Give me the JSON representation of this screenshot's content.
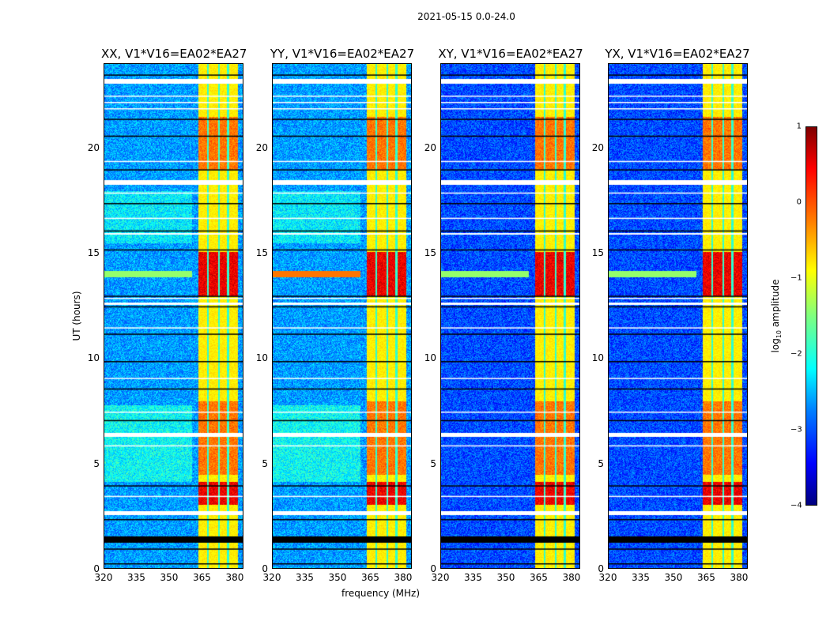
{
  "chart_data": {
    "type": "heatmap",
    "suptitle": "2021-05-15 0.0-24.0",
    "xlabel": "frequency (MHz)",
    "ylabel": "UT (hours)",
    "xlim": [
      320,
      384
    ],
    "ylim": [
      0,
      24
    ],
    "xticks": [
      "320",
      "335",
      "350",
      "365",
      "380"
    ],
    "xtick_values": [
      320,
      335,
      350,
      365,
      380
    ],
    "yticks": [
      "0",
      "5",
      "10",
      "15",
      "20"
    ],
    "ytick_values": [
      0,
      5,
      10,
      15,
      20
    ],
    "panels": [
      {
        "title": "XX, V1*V16=EA02*EA27",
        "pol": "XX"
      },
      {
        "title": "YY, V1*V16=EA02*EA27",
        "pol": "YY"
      },
      {
        "title": "XY, V1*V16=EA02*EA27",
        "pol": "XY"
      },
      {
        "title": "YX, V1*V16=EA02*EA27",
        "pol": "YX"
      }
    ],
    "colorbar": {
      "label": "log10 amplitude",
      "range": [
        -4,
        1
      ],
      "ticks": [
        "1",
        "0",
        "−1",
        "−2",
        "−3",
        "−4"
      ],
      "tick_values": [
        1,
        0,
        -1,
        -2,
        -3,
        -4
      ],
      "colormap": "jet"
    },
    "features": {
      "rfi_band_mhz": [
        363,
        381
      ],
      "rfi_subbands_mhz": [
        [
          363,
          367
        ],
        [
          367.5,
          372
        ],
        [
          372.5,
          376
        ],
        [
          377,
          381
        ]
      ],
      "flagged_black_hours": [
        [
          1.3,
          1.6
        ]
      ],
      "flagged_white_hours": [
        [
          2.6,
          2.8
        ],
        [
          6.3,
          6.5
        ],
        [
          18.3,
          18.5
        ],
        [
          23.1,
          23.3
        ],
        [
          12.6,
          12.7
        ],
        [
          15.9,
          16.0
        ]
      ],
      "strong_rfi_hours": [
        [
          13.0,
          15.1
        ],
        [
          3.1,
          4.2
        ]
      ]
    }
  }
}
